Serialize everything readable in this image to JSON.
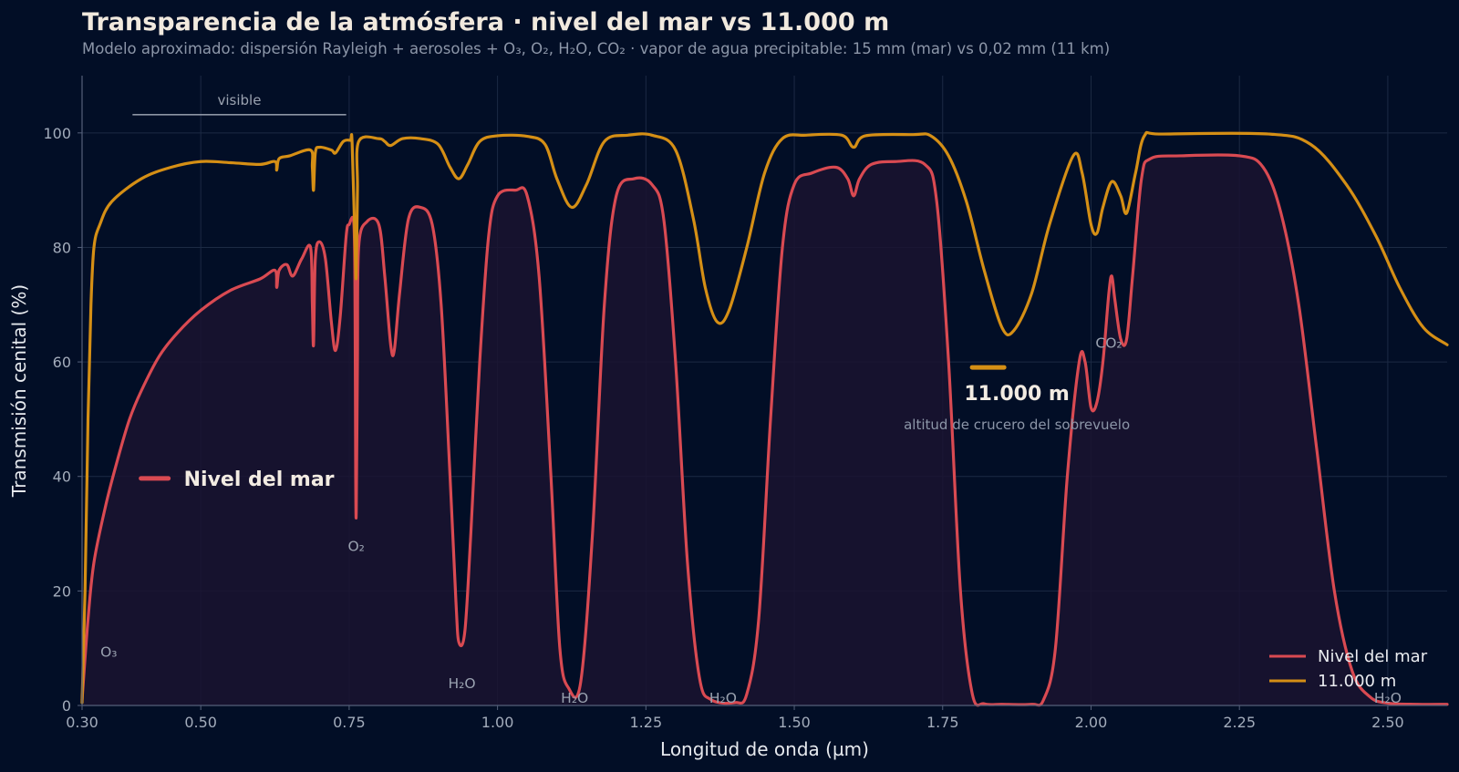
{
  "title": "Transparencia de la atmósfera · nivel del mar vs 11.000 m",
  "subtitle": "Modelo aproximado: dispersión Rayleigh + aerosoles + O₃, O₂, H₂O, CO₂ · vapor de agua precipitable: 15 mm (mar) vs 0,02 mm (11 km)",
  "colors": {
    "background": "#020e26",
    "sea_level": "#d94a52",
    "altitude": "#d58f15",
    "grid": "#1c2a44",
    "fill": "#1a1330"
  },
  "chart_data": {
    "type": "line",
    "xlabel": "Longitud de onda (µm)",
    "ylabel": "Transmisión cenital (%)",
    "xlim": [
      0.3,
      2.6
    ],
    "ylim": [
      0,
      110
    ],
    "xticks": [
      0.3,
      0.5,
      0.75,
      1.0,
      1.25,
      1.5,
      1.75,
      2.0,
      2.25,
      2.5
    ],
    "xtick_labels": [
      "0.30",
      "0.50",
      "0.75",
      "1.00",
      "1.25",
      "1.50",
      "1.75",
      "2.00",
      "2.25",
      "2.50"
    ],
    "yticks": [
      0,
      20,
      40,
      60,
      80,
      100
    ],
    "ytick_labels": [
      "0",
      "20",
      "40",
      "60",
      "80",
      "100"
    ],
    "grid": true,
    "legend_position": "bottom-right",
    "series": [
      {
        "name": "Nivel del mar",
        "color": "#d94a52",
        "fill": true,
        "points": [
          [
            0.3,
            1
          ],
          [
            0.31,
            15
          ],
          [
            0.32,
            25
          ],
          [
            0.34,
            35
          ],
          [
            0.36,
            43
          ],
          [
            0.38,
            50
          ],
          [
            0.4,
            55
          ],
          [
            0.43,
            61
          ],
          [
            0.46,
            65
          ],
          [
            0.5,
            69
          ],
          [
            0.55,
            72.5
          ],
          [
            0.6,
            74.5
          ],
          [
            0.625,
            76
          ],
          [
            0.628,
            73
          ],
          [
            0.632,
            76
          ],
          [
            0.645,
            77
          ],
          [
            0.655,
            75
          ],
          [
            0.67,
            78
          ],
          [
            0.685,
            80
          ],
          [
            0.688,
            70
          ],
          [
            0.69,
            63
          ],
          [
            0.693,
            78
          ],
          [
            0.7,
            81
          ],
          [
            0.71,
            78
          ],
          [
            0.72,
            67
          ],
          [
            0.727,
            62
          ],
          [
            0.735,
            68
          ],
          [
            0.745,
            82
          ],
          [
            0.75,
            84
          ],
          [
            0.758,
            84
          ],
          [
            0.76,
            68
          ],
          [
            0.761,
            40
          ],
          [
            0.762,
            34
          ],
          [
            0.764,
            60
          ],
          [
            0.766,
            80
          ],
          [
            0.78,
            84.5
          ],
          [
            0.8,
            84
          ],
          [
            0.81,
            75
          ],
          [
            0.82,
            63
          ],
          [
            0.826,
            62
          ],
          [
            0.835,
            72
          ],
          [
            0.85,
            85
          ],
          [
            0.87,
            87
          ],
          [
            0.89,
            84
          ],
          [
            0.905,
            70
          ],
          [
            0.92,
            40
          ],
          [
            0.93,
            18
          ],
          [
            0.935,
            11
          ],
          [
            0.945,
            13
          ],
          [
            0.955,
            30
          ],
          [
            0.97,
            60
          ],
          [
            0.985,
            82
          ],
          [
            1.0,
            89
          ],
          [
            1.03,
            90
          ],
          [
            1.05,
            89
          ],
          [
            1.07,
            75
          ],
          [
            1.09,
            40
          ],
          [
            1.105,
            10
          ],
          [
            1.12,
            3
          ],
          [
            1.14,
            4
          ],
          [
            1.16,
            30
          ],
          [
            1.18,
            70
          ],
          [
            1.2,
            89
          ],
          [
            1.23,
            92
          ],
          [
            1.26,
            91
          ],
          [
            1.28,
            85
          ],
          [
            1.3,
            60
          ],
          [
            1.32,
            25
          ],
          [
            1.34,
            5
          ],
          [
            1.36,
            1
          ],
          [
            1.4,
            0.5
          ],
          [
            1.42,
            2
          ],
          [
            1.44,
            15
          ],
          [
            1.46,
            50
          ],
          [
            1.48,
            80
          ],
          [
            1.5,
            91
          ],
          [
            1.53,
            93
          ],
          [
            1.57,
            94
          ],
          [
            1.59,
            92
          ],
          [
            1.6,
            89
          ],
          [
            1.61,
            92
          ],
          [
            1.63,
            94.5
          ],
          [
            1.67,
            95
          ],
          [
            1.72,
            94.5
          ],
          [
            1.74,
            88
          ],
          [
            1.76,
            60
          ],
          [
            1.78,
            20
          ],
          [
            1.8,
            2
          ],
          [
            1.82,
            0.3
          ],
          [
            1.85,
            0.2
          ],
          [
            1.9,
            0.2
          ],
          [
            1.92,
            1
          ],
          [
            1.94,
            10
          ],
          [
            1.96,
            40
          ],
          [
            1.98,
            60
          ],
          [
            1.99,
            60
          ],
          [
            2.0,
            52
          ],
          [
            2.01,
            53
          ],
          [
            2.02,
            60
          ],
          [
            2.03,
            72
          ],
          [
            2.035,
            75
          ],
          [
            2.04,
            71
          ],
          [
            2.05,
            64
          ],
          [
            2.06,
            64
          ],
          [
            2.07,
            75
          ],
          [
            2.085,
            92
          ],
          [
            2.1,
            95.5
          ],
          [
            2.15,
            96
          ],
          [
            2.25,
            96
          ],
          [
            2.29,
            94
          ],
          [
            2.32,
            86
          ],
          [
            2.35,
            70
          ],
          [
            2.38,
            45
          ],
          [
            2.41,
            20
          ],
          [
            2.44,
            6
          ],
          [
            2.47,
            1.5
          ],
          [
            2.5,
            0.4
          ],
          [
            2.55,
            0.2
          ],
          [
            2.6,
            0.2
          ]
        ]
      },
      {
        "name": "11.000 m",
        "color": "#d58f15",
        "fill": false,
        "points": [
          [
            0.3,
            0.5
          ],
          [
            0.305,
            20
          ],
          [
            0.31,
            50
          ],
          [
            0.315,
            70
          ],
          [
            0.32,
            80
          ],
          [
            0.33,
            84
          ],
          [
            0.35,
            88
          ],
          [
            0.4,
            92
          ],
          [
            0.45,
            94
          ],
          [
            0.5,
            95
          ],
          [
            0.55,
            94.8
          ],
          [
            0.6,
            94.5
          ],
          [
            0.625,
            95
          ],
          [
            0.628,
            93.5
          ],
          [
            0.632,
            95.5
          ],
          [
            0.65,
            96
          ],
          [
            0.685,
            97
          ],
          [
            0.688,
            94
          ],
          [
            0.69,
            90
          ],
          [
            0.693,
            96.5
          ],
          [
            0.7,
            97.5
          ],
          [
            0.72,
            97
          ],
          [
            0.727,
            96.5
          ],
          [
            0.74,
            98.5
          ],
          [
            0.752,
            98.7
          ],
          [
            0.755,
            98.2
          ],
          [
            0.76,
            80
          ],
          [
            0.762,
            75
          ],
          [
            0.764,
            90
          ],
          [
            0.766,
            98.5
          ],
          [
            0.8,
            99
          ],
          [
            0.81,
            98.5
          ],
          [
            0.82,
            97.8
          ],
          [
            0.84,
            99
          ],
          [
            0.87,
            99
          ],
          [
            0.9,
            98
          ],
          [
            0.92,
            94
          ],
          [
            0.935,
            92
          ],
          [
            0.95,
            94.5
          ],
          [
            0.97,
            98.5
          ],
          [
            1.0,
            99.5
          ],
          [
            1.05,
            99.4
          ],
          [
            1.08,
            98
          ],
          [
            1.1,
            92
          ],
          [
            1.125,
            87
          ],
          [
            1.15,
            91
          ],
          [
            1.18,
            98.5
          ],
          [
            1.22,
            99.6
          ],
          [
            1.26,
            99.6
          ],
          [
            1.3,
            97
          ],
          [
            1.33,
            85
          ],
          [
            1.35,
            73
          ],
          [
            1.37,
            67
          ],
          [
            1.39,
            69
          ],
          [
            1.42,
            80
          ],
          [
            1.45,
            93
          ],
          [
            1.48,
            99
          ],
          [
            1.52,
            99.6
          ],
          [
            1.58,
            99.6
          ],
          [
            1.6,
            97.5
          ],
          [
            1.62,
            99.5
          ],
          [
            1.7,
            99.7
          ],
          [
            1.73,
            99.5
          ],
          [
            1.76,
            96
          ],
          [
            1.79,
            88
          ],
          [
            1.82,
            76
          ],
          [
            1.85,
            66
          ],
          [
            1.87,
            65.5
          ],
          [
            1.9,
            72
          ],
          [
            1.93,
            84
          ],
          [
            1.97,
            96
          ],
          [
            1.985,
            93
          ],
          [
            2.0,
            84
          ],
          [
            2.01,
            82.5
          ],
          [
            2.02,
            87
          ],
          [
            2.035,
            91.5
          ],
          [
            2.05,
            89
          ],
          [
            2.06,
            86
          ],
          [
            2.075,
            93
          ],
          [
            2.09,
            99.5
          ],
          [
            2.12,
            99.8
          ],
          [
            2.3,
            99.8
          ],
          [
            2.37,
            98
          ],
          [
            2.43,
            91
          ],
          [
            2.48,
            82
          ],
          [
            2.52,
            73
          ],
          [
            2.56,
            66
          ],
          [
            2.6,
            63
          ]
        ]
      }
    ],
    "annotations": [
      {
        "text": "visible",
        "x_range": [
          0.385,
          0.745
        ],
        "y": 103.5
      },
      {
        "text": "O₃",
        "x": 0.345,
        "y": 8.5
      },
      {
        "text": "O₂",
        "x": 0.762,
        "y": 27
      },
      {
        "text": "H₂O",
        "x": 0.94,
        "y": 3
      },
      {
        "text": "H₂O",
        "x": 1.13,
        "y": 0.5
      },
      {
        "text": "H₂O",
        "x": 1.38,
        "y": 0.5
      },
      {
        "text": "CO₂",
        "x": 2.03,
        "y": 62.5
      },
      {
        "text": "H₂O",
        "x": 2.5,
        "y": 0.5
      }
    ],
    "inline_labels": {
      "sea_level": {
        "text": "Nivel del mar",
        "x": 0.45,
        "y": 39.5
      },
      "altitude": {
        "text": "11.000 m",
        "subtext": "altitud de crucero del sobrevuelo",
        "x": 1.875,
        "y": 53
      }
    }
  }
}
